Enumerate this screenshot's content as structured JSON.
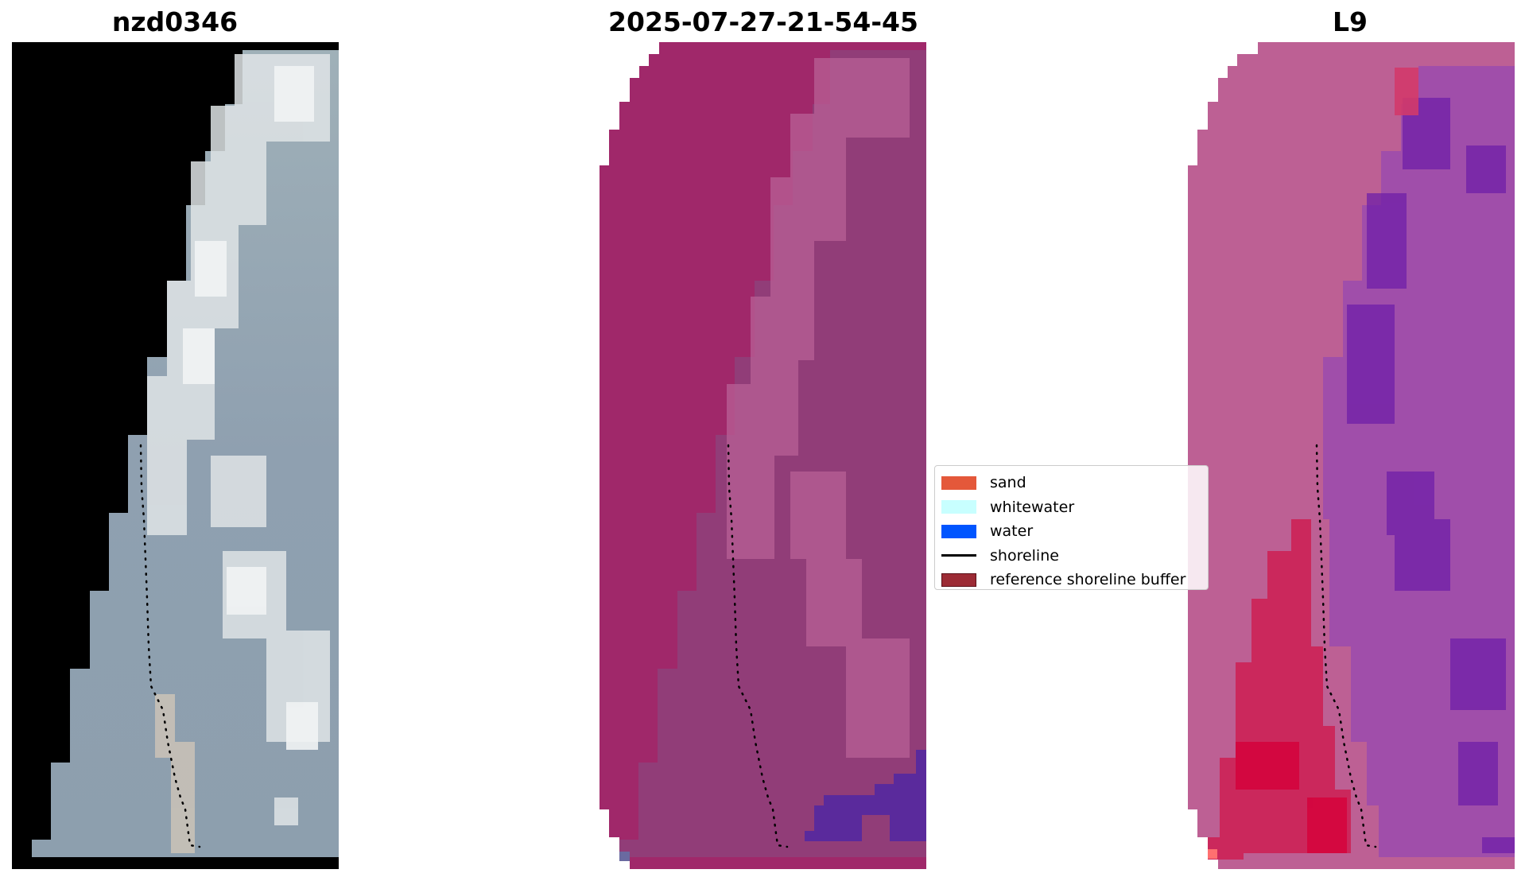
{
  "panels": [
    {
      "title": "nzd0346"
    },
    {
      "title": "2025-07-27-21-54-45"
    },
    {
      "title": "L9"
    }
  ],
  "legend": {
    "items": [
      {
        "label": "sand",
        "color": "#e4583a",
        "type": "patch"
      },
      {
        "label": "whitewater",
        "color": "#c8ffff",
        "type": "patch"
      },
      {
        "label": "water",
        "color": "#0055ff",
        "type": "patch"
      },
      {
        "label": "shoreline",
        "color": "#000000",
        "type": "line"
      },
      {
        "label": "reference shoreline buffer",
        "color": "#9c2b35",
        "type": "patch"
      }
    ]
  }
}
